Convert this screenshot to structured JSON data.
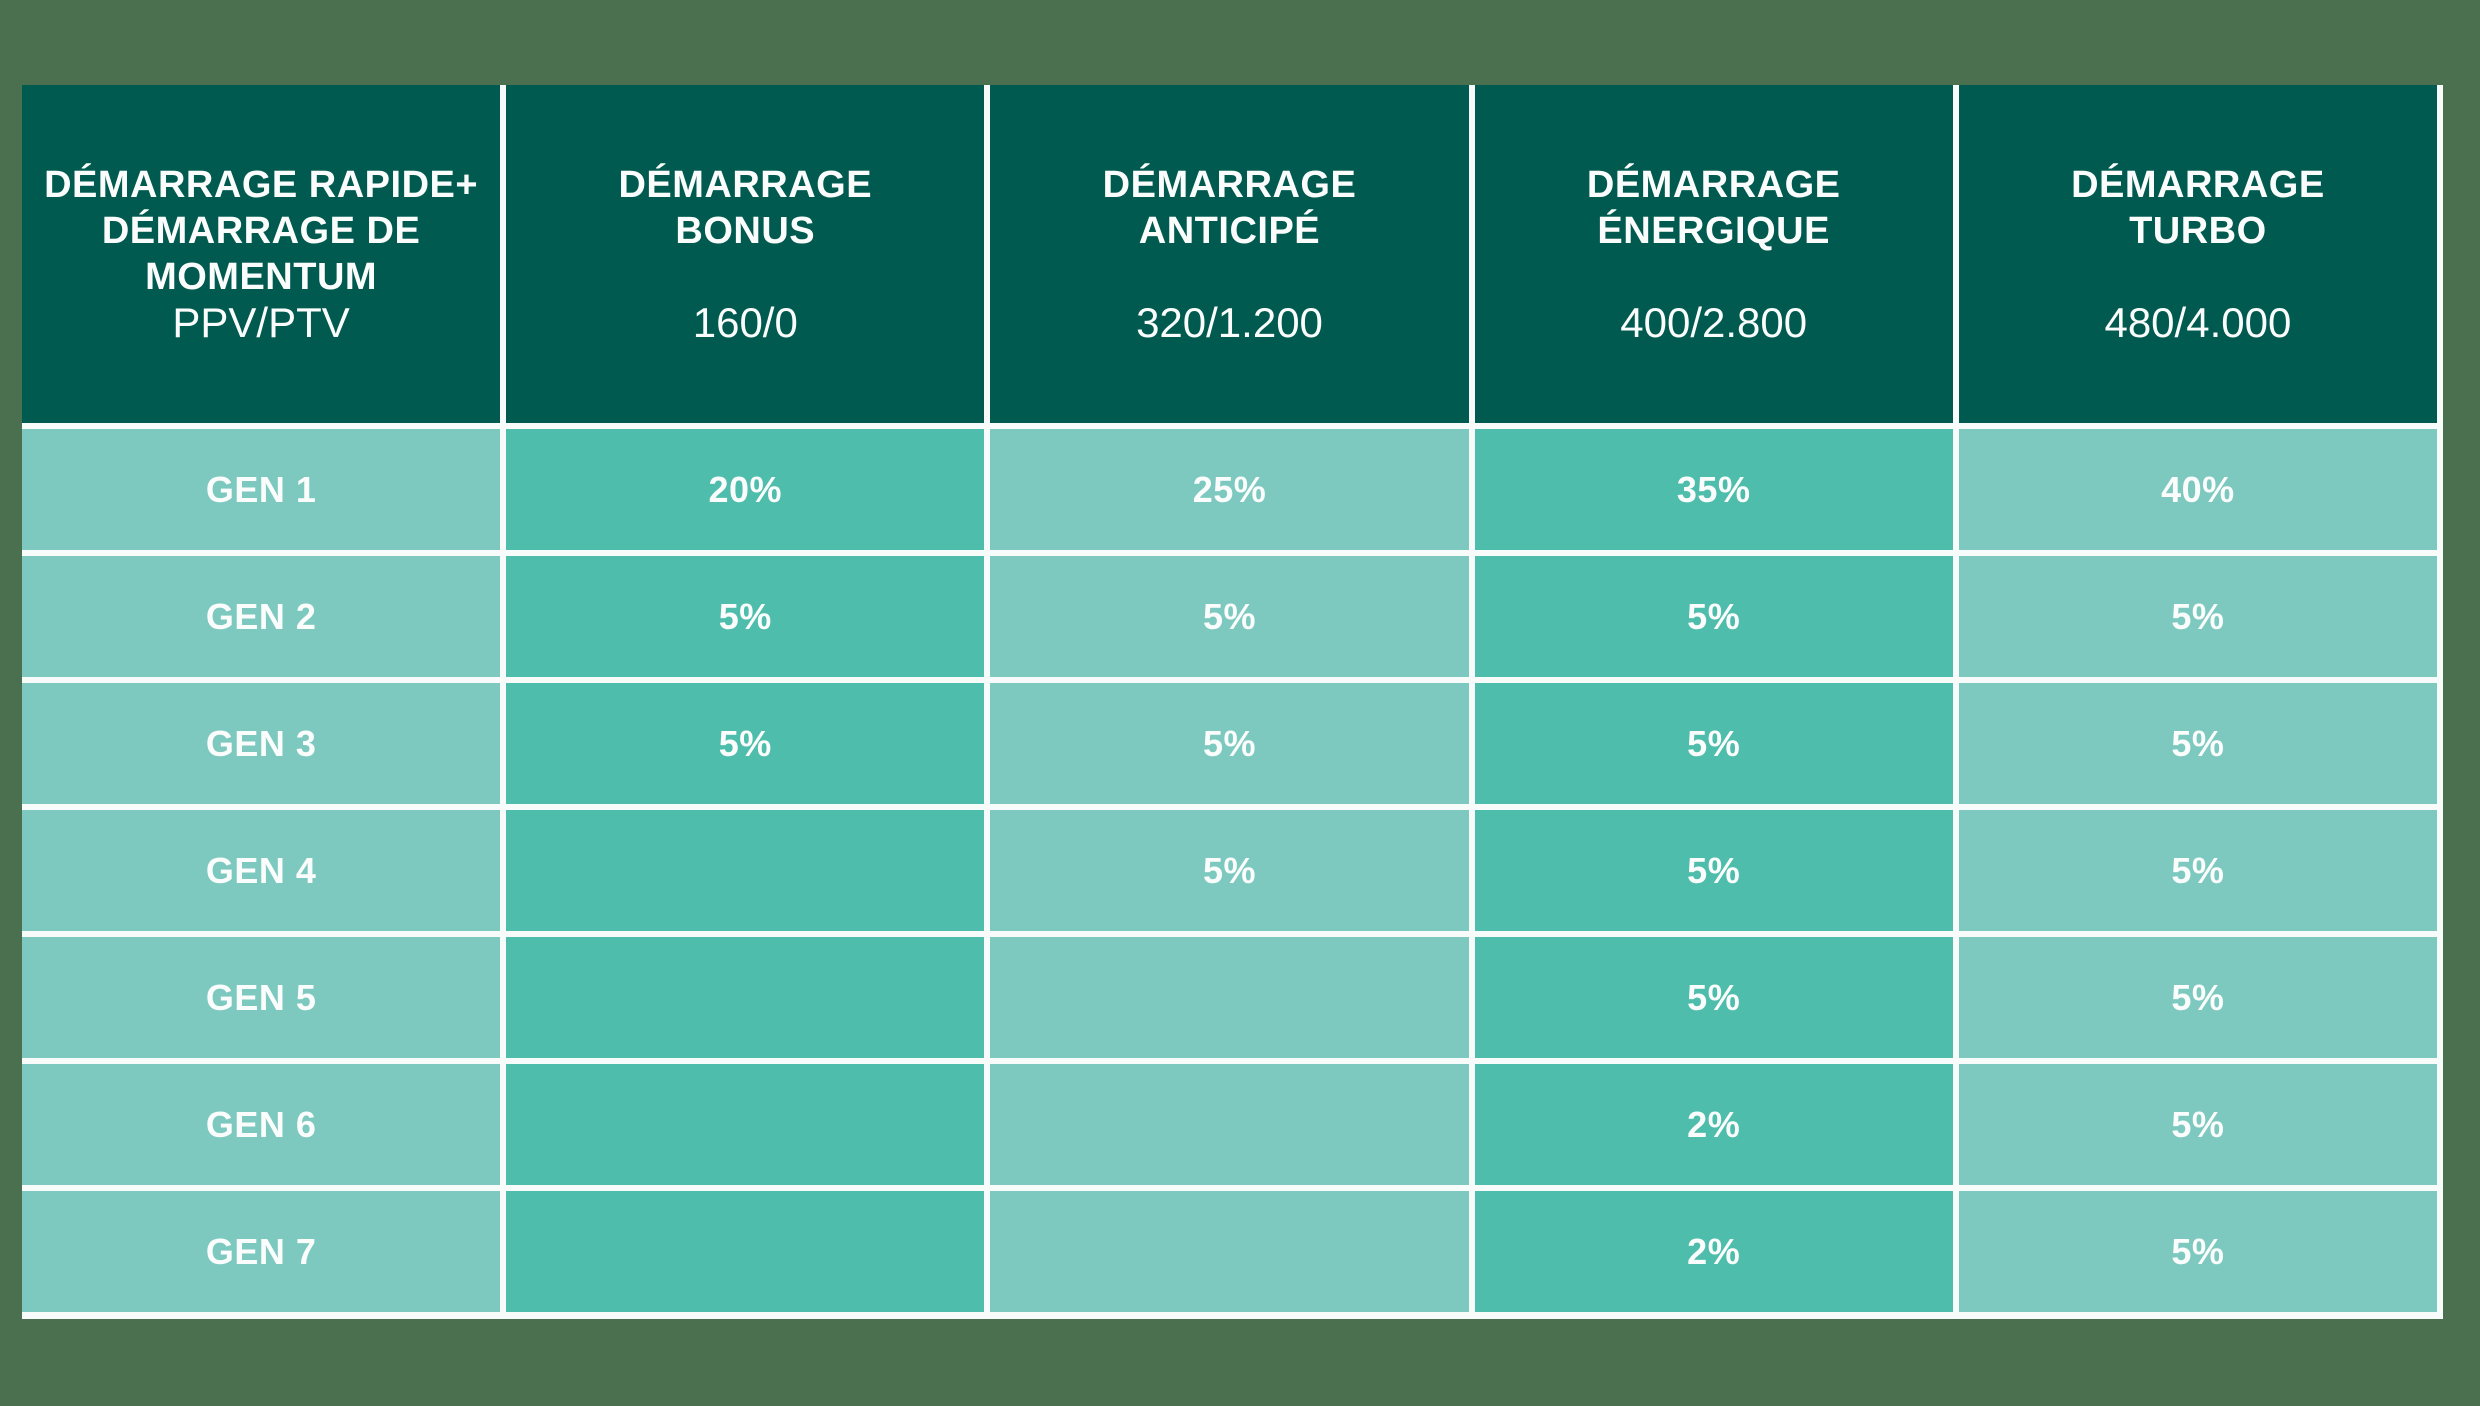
{
  "chart_data": {
    "type": "table",
    "title": "DÉMARRAGE RAPIDE+ DÉMARRAGE DE MOMENTUM",
    "columns": [
      {
        "title_lines": [
          "DÉMARRAGE RAPIDE+",
          "DÉMARRAGE DE",
          "MOMENTUM"
        ],
        "subtitle": "PPV/PTV"
      },
      {
        "title_lines": [
          "DÉMARRAGE",
          "BONUS"
        ],
        "subtitle": "160/0"
      },
      {
        "title_lines": [
          "DÉMARRAGE",
          "ANTICIPÉ"
        ],
        "subtitle": "320/1.200"
      },
      {
        "title_lines": [
          "DÉMARRAGE",
          "ÉNERGIQUE"
        ],
        "subtitle": "400/2.800"
      },
      {
        "title_lines": [
          "DÉMARRAGE",
          "TURBO"
        ],
        "subtitle": "480/4.000"
      }
    ],
    "rows": [
      {
        "label": "GEN 1",
        "values": [
          "20%",
          "25%",
          "35%",
          "40%"
        ]
      },
      {
        "label": "GEN 2",
        "values": [
          "5%",
          "5%",
          "5%",
          "5%"
        ]
      },
      {
        "label": "GEN 3",
        "values": [
          "5%",
          "5%",
          "5%",
          "5%"
        ]
      },
      {
        "label": "GEN 4",
        "values": [
          "",
          "5%",
          "5%",
          "5%"
        ]
      },
      {
        "label": "GEN 5",
        "values": [
          "",
          "",
          "5%",
          "5%"
        ]
      },
      {
        "label": "GEN 6",
        "values": [
          "",
          "",
          "2%",
          "5%"
        ]
      },
      {
        "label": "GEN 7",
        "values": [
          "",
          "",
          "2%",
          "5%"
        ]
      }
    ]
  },
  "colors": {
    "background": "#4B7050",
    "header_bg": "#015A50",
    "cell_light": "#7DC9BF",
    "cell_medium": "#4FBDAC",
    "grid_line": "#F7FCFA",
    "text": "#FBFDFC"
  }
}
